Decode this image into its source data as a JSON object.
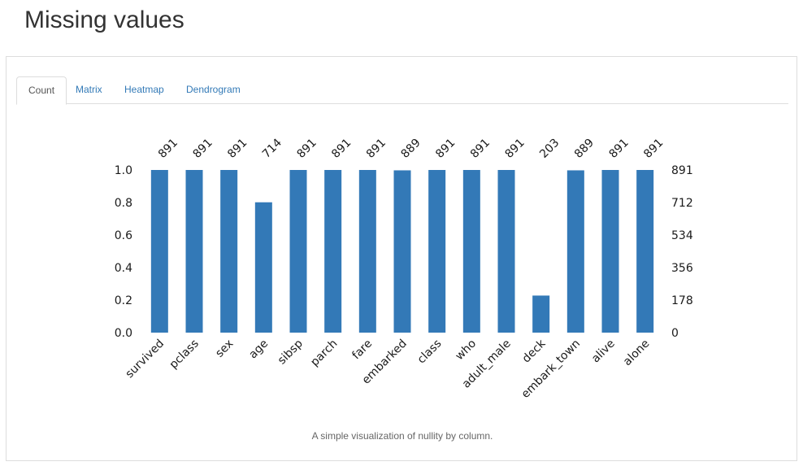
{
  "header": {
    "title": "Missing values"
  },
  "tabs": [
    {
      "label": "Count",
      "active": true
    },
    {
      "label": "Matrix",
      "active": false
    },
    {
      "label": "Heatmap",
      "active": false
    },
    {
      "label": "Dendrogram",
      "active": false
    }
  ],
  "caption": "A simple visualization of nullity by column.",
  "colors": {
    "bar": "#3379b7",
    "link": "#337ab7"
  },
  "chart_data": {
    "type": "bar",
    "title": "",
    "categories": [
      "survived",
      "pclass",
      "sex",
      "age",
      "sibsp",
      "parch",
      "fare",
      "embarked",
      "class",
      "who",
      "adult_male",
      "deck",
      "embark_town",
      "alive",
      "alone"
    ],
    "counts": [
      891,
      891,
      891,
      714,
      891,
      891,
      891,
      889,
      891,
      891,
      891,
      203,
      889,
      891,
      891
    ],
    "total": 891,
    "ylim": [
      0,
      1
    ],
    "left_ticks": [
      "0.0",
      "0.2",
      "0.4",
      "0.6",
      "0.8",
      "1.0"
    ],
    "right_ticks": [
      "0",
      "178",
      "356",
      "534",
      "712",
      "891"
    ],
    "xlabel": "",
    "ylabel": ""
  }
}
